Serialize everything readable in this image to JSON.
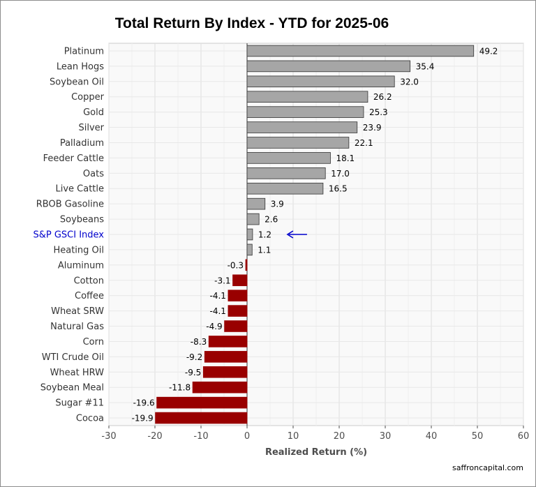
{
  "chart_data": {
    "type": "bar",
    "orientation": "horizontal",
    "title": "Total Return By Index - YTD for 2025-06",
    "xlabel": "Realized Return (%)",
    "ylabel": "",
    "xlim": [
      -30,
      60
    ],
    "xticks": [
      -30,
      -20,
      -10,
      0,
      10,
      20,
      30,
      40,
      50,
      60
    ],
    "grid": true,
    "legend": "none",
    "categories": [
      "Platinum",
      "Lean Hogs",
      "Soybean Oil",
      "Copper",
      "Gold",
      "Silver",
      "Palladium",
      "Feeder Cattle",
      "Oats",
      "Live Cattle",
      "RBOB Gasoline",
      "Soybeans",
      "S&P GSCI Index",
      "Heating Oil",
      "Aluminum",
      "Cotton",
      "Coffee",
      "Wheat SRW",
      "Natural Gas",
      "Corn",
      "WTI Crude Oil",
      "Wheat HRW",
      "Soybean Meal",
      "Sugar #11",
      "Cocoa"
    ],
    "values": [
      49.2,
      35.4,
      32.0,
      26.2,
      25.3,
      23.9,
      22.1,
      18.1,
      17.0,
      16.5,
      3.9,
      2.6,
      1.2,
      1.1,
      -0.3,
      -3.1,
      -4.1,
      -4.1,
      -4.9,
      -8.3,
      -9.2,
      -9.5,
      -11.8,
      -19.6,
      -19.9
    ],
    "value_labels": [
      "49.2",
      "35.4",
      "32.0",
      "26.2",
      "25.3",
      "23.9",
      "22.1",
      "18.1",
      "17.0",
      "16.5",
      "3.9",
      "2.6",
      "1.2",
      "1.1",
      "-0.3",
      "-3.1",
      "-4.1",
      "-4.1",
      "-4.9",
      "-8.3",
      "-9.2",
      "-9.5",
      "-11.8",
      "-19.6",
      "-19.9"
    ],
    "highlight": {
      "category": "S&P GSCI Index",
      "marker": "left-arrow",
      "color": "#0000cc"
    },
    "colors": {
      "positive": "#a6a6a6",
      "negative": "#990000",
      "bar_outline": "#333333",
      "panel_background": "#f9f9f9",
      "grid": "#e3e3e3"
    }
  },
  "footer": {
    "credit": "saffroncapital.com"
  }
}
